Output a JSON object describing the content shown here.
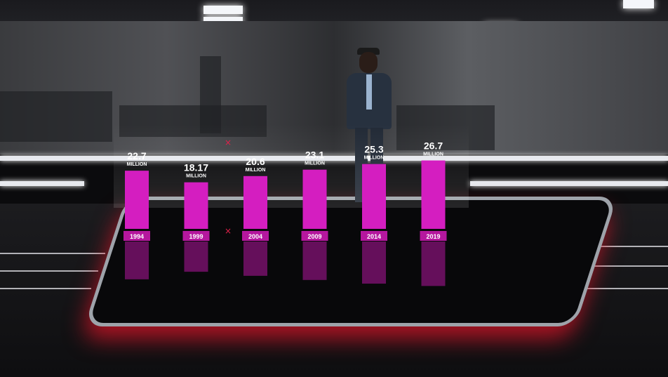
{
  "colors": {
    "bar": "#d41ec0",
    "bar_reflection": "#b3169f",
    "tick_label_bg": "#b5179e",
    "text": "#ffffff",
    "floor_glow": "#e01a33"
  },
  "chart_data": {
    "type": "bar",
    "categories": [
      "1994",
      "1999",
      "2004",
      "2009",
      "2014",
      "2019"
    ],
    "values": [
      22.7,
      18.17,
      20.6,
      23.1,
      25.3,
      26.7
    ],
    "value_labels": [
      "22.7",
      "18.17",
      "20.6",
      "23.1",
      "25.3",
      "26.7"
    ],
    "unit_label": "MILLION",
    "title": "",
    "xlabel": "",
    "ylabel": "",
    "ylim": [
      0,
      30
    ],
    "grid": false,
    "legend": "none",
    "reflection": true
  }
}
